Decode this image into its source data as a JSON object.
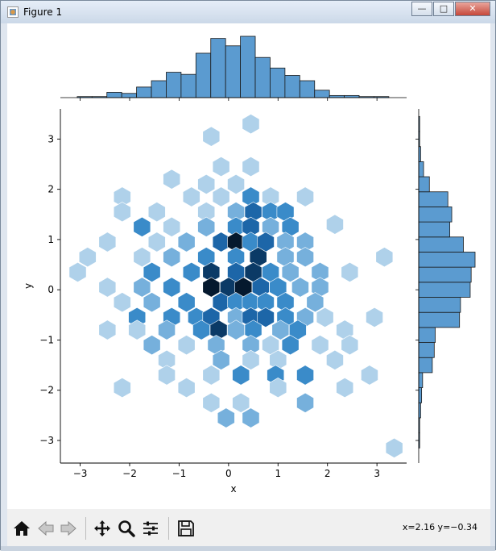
{
  "window": {
    "title": "Figure 1",
    "min": "—",
    "max": "□",
    "close": "✕"
  },
  "toolbar": {
    "buttons": [
      "home-icon",
      "back-icon",
      "forward-icon",
      "pan-icon",
      "zoom-icon",
      "configure-icon",
      "save-icon"
    ],
    "coords": "x=2.16 y=−0.34"
  },
  "colors": {
    "bar": "#5b9bd0",
    "hex_scale": [
      "#dbe9f6",
      "#afd1ea",
      "#76b0dc",
      "#3a8bc9",
      "#1d66a8",
      "#0b3a66",
      "#05192e"
    ]
  },
  "chart_data": [
    {
      "type": "heatmap",
      "subtype": "hexbin",
      "xlabel": "x",
      "ylabel": "y",
      "xlim": [
        -3.4,
        3.6
      ],
      "ylim": [
        -3.45,
        3.6
      ],
      "xticks": [
        -3,
        -2,
        -1,
        0,
        1,
        2,
        3
      ],
      "yticks": [
        -3,
        -2,
        -1,
        0,
        1,
        2,
        3
      ],
      "xtick_labels": [
        "−3",
        "−2",
        "−1",
        "0",
        "1",
        "2",
        "3"
      ],
      "ytick_labels": [
        "−3",
        "−2",
        "−1",
        "0",
        "1",
        "2",
        "3"
      ],
      "cells": [
        {
          "x": 0.45,
          "y": 3.3,
          "level": 1
        },
        {
          "x": -0.35,
          "y": 3.05,
          "level": 1
        },
        {
          "x": -0.15,
          "y": 2.45,
          "level": 1
        },
        {
          "x": 0.45,
          "y": 2.45,
          "level": 1
        },
        {
          "x": -1.15,
          "y": 2.2,
          "level": 1
        },
        {
          "x": -0.45,
          "y": 2.1,
          "level": 1
        },
        {
          "x": 0.15,
          "y": 2.1,
          "level": 1
        },
        {
          "x": -2.15,
          "y": 1.85,
          "level": 1
        },
        {
          "x": -0.75,
          "y": 1.85,
          "level": 1
        },
        {
          "x": -0.15,
          "y": 1.85,
          "level": 1
        },
        {
          "x": 0.45,
          "y": 1.85,
          "level": 3
        },
        {
          "x": 0.85,
          "y": 1.85,
          "level": 1
        },
        {
          "x": 1.55,
          "y": 1.85,
          "level": 1
        },
        {
          "x": -2.15,
          "y": 1.55,
          "level": 1
        },
        {
          "x": -1.45,
          "y": 1.55,
          "level": 1
        },
        {
          "x": -0.45,
          "y": 1.55,
          "level": 1
        },
        {
          "x": 0.15,
          "y": 1.55,
          "level": 2
        },
        {
          "x": 0.5,
          "y": 1.55,
          "level": 4
        },
        {
          "x": 0.85,
          "y": 1.55,
          "level": 3
        },
        {
          "x": 1.15,
          "y": 1.55,
          "level": 3
        },
        {
          "x": -1.75,
          "y": 1.25,
          "level": 3
        },
        {
          "x": -1.15,
          "y": 1.25,
          "level": 1
        },
        {
          "x": -0.45,
          "y": 1.25,
          "level": 2
        },
        {
          "x": 0.15,
          "y": 1.25,
          "level": 3
        },
        {
          "x": 0.45,
          "y": 1.25,
          "level": 4
        },
        {
          "x": 0.85,
          "y": 1.25,
          "level": 2
        },
        {
          "x": 1.25,
          "y": 1.25,
          "level": 3
        },
        {
          "x": 2.15,
          "y": 1.3,
          "level": 1
        },
        {
          "x": -2.45,
          "y": 0.95,
          "level": 1
        },
        {
          "x": -1.45,
          "y": 0.95,
          "level": 1
        },
        {
          "x": -0.85,
          "y": 0.95,
          "level": 2
        },
        {
          "x": -0.15,
          "y": 0.95,
          "level": 4
        },
        {
          "x": 0.15,
          "y": 0.95,
          "level": 6
        },
        {
          "x": 0.45,
          "y": 0.95,
          "level": 3
        },
        {
          "x": 0.75,
          "y": 0.95,
          "level": 4
        },
        {
          "x": 1.15,
          "y": 0.95,
          "level": 2
        },
        {
          "x": 1.55,
          "y": 0.95,
          "level": 2
        },
        {
          "x": -2.85,
          "y": 0.65,
          "level": 1
        },
        {
          "x": -1.75,
          "y": 0.65,
          "level": 1
        },
        {
          "x": -1.15,
          "y": 0.65,
          "level": 2
        },
        {
          "x": -0.45,
          "y": 0.65,
          "level": 3
        },
        {
          "x": 0.15,
          "y": 0.65,
          "level": 3
        },
        {
          "x": 0.6,
          "y": 0.65,
          "level": 5
        },
        {
          "x": 1.15,
          "y": 0.65,
          "level": 2
        },
        {
          "x": 1.55,
          "y": 0.65,
          "level": 2
        },
        {
          "x": 3.15,
          "y": 0.65,
          "level": 1
        },
        {
          "x": -3.05,
          "y": 0.35,
          "level": 1
        },
        {
          "x": -1.55,
          "y": 0.35,
          "level": 3
        },
        {
          "x": -0.75,
          "y": 0.35,
          "level": 3
        },
        {
          "x": -0.35,
          "y": 0.35,
          "level": 5
        },
        {
          "x": 0.15,
          "y": 0.35,
          "level": 4
        },
        {
          "x": 0.5,
          "y": 0.35,
          "level": 5
        },
        {
          "x": 0.85,
          "y": 0.35,
          "level": 3
        },
        {
          "x": 1.25,
          "y": 0.35,
          "level": 2
        },
        {
          "x": 1.85,
          "y": 0.35,
          "level": 2
        },
        {
          "x": 2.45,
          "y": 0.35,
          "level": 1
        },
        {
          "x": -2.45,
          "y": 0.05,
          "level": 1
        },
        {
          "x": -1.75,
          "y": 0.05,
          "level": 2
        },
        {
          "x": -1.15,
          "y": 0.05,
          "level": 3
        },
        {
          "x": -0.35,
          "y": 0.05,
          "level": 6
        },
        {
          "x": 0.0,
          "y": 0.05,
          "level": 5
        },
        {
          "x": 0.3,
          "y": 0.05,
          "level": 6
        },
        {
          "x": 0.65,
          "y": 0.05,
          "level": 4
        },
        {
          "x": 1.0,
          "y": 0.05,
          "level": 3
        },
        {
          "x": 1.45,
          "y": 0.05,
          "level": 2
        },
        {
          "x": 1.85,
          "y": 0.05,
          "level": 2
        },
        {
          "x": -2.15,
          "y": -0.25,
          "level": 1
        },
        {
          "x": -1.55,
          "y": -0.25,
          "level": 2
        },
        {
          "x": -0.85,
          "y": -0.25,
          "level": 3
        },
        {
          "x": -0.15,
          "y": -0.25,
          "level": 4
        },
        {
          "x": 0.15,
          "y": -0.25,
          "level": 3
        },
        {
          "x": 0.45,
          "y": -0.25,
          "level": 3
        },
        {
          "x": 0.75,
          "y": -0.25,
          "level": 3
        },
        {
          "x": 1.15,
          "y": -0.25,
          "level": 3
        },
        {
          "x": 1.75,
          "y": -0.25,
          "level": 2
        },
        {
          "x": -1.85,
          "y": -0.55,
          "level": 3
        },
        {
          "x": -1.15,
          "y": -0.55,
          "level": 3
        },
        {
          "x": -0.65,
          "y": -0.55,
          "level": 3
        },
        {
          "x": -0.35,
          "y": -0.55,
          "level": 4
        },
        {
          "x": 0.15,
          "y": -0.55,
          "level": 2
        },
        {
          "x": 0.45,
          "y": -0.55,
          "level": 4
        },
        {
          "x": 0.75,
          "y": -0.55,
          "level": 4
        },
        {
          "x": 1.15,
          "y": -0.55,
          "level": 3
        },
        {
          "x": 1.55,
          "y": -0.55,
          "level": 2
        },
        {
          "x": 1.95,
          "y": -0.55,
          "level": 1
        },
        {
          "x": 2.95,
          "y": -0.55,
          "level": 1
        },
        {
          "x": -2.45,
          "y": -0.8,
          "level": 1
        },
        {
          "x": -1.85,
          "y": -0.8,
          "level": 1
        },
        {
          "x": -1.25,
          "y": -0.8,
          "level": 2
        },
        {
          "x": -0.55,
          "y": -0.8,
          "level": 3
        },
        {
          "x": -0.2,
          "y": -0.8,
          "level": 5
        },
        {
          "x": 0.15,
          "y": -0.8,
          "level": 2
        },
        {
          "x": 0.5,
          "y": -0.8,
          "level": 3
        },
        {
          "x": 1.05,
          "y": -0.8,
          "level": 2
        },
        {
          "x": 1.4,
          "y": -0.8,
          "level": 3
        },
        {
          "x": 2.35,
          "y": -0.8,
          "level": 1
        },
        {
          "x": -1.55,
          "y": -1.1,
          "level": 2
        },
        {
          "x": -0.85,
          "y": -1.1,
          "level": 1
        },
        {
          "x": -0.25,
          "y": -1.1,
          "level": 2
        },
        {
          "x": 0.45,
          "y": -1.1,
          "level": 2
        },
        {
          "x": 0.85,
          "y": -1.1,
          "level": 1
        },
        {
          "x": 1.25,
          "y": -1.1,
          "level": 3
        },
        {
          "x": 1.85,
          "y": -1.1,
          "level": 1
        },
        {
          "x": 2.45,
          "y": -1.1,
          "level": 1
        },
        {
          "x": -1.25,
          "y": -1.4,
          "level": 1
        },
        {
          "x": -0.15,
          "y": -1.4,
          "level": 2
        },
        {
          "x": 0.45,
          "y": -1.4,
          "level": 1
        },
        {
          "x": 1.0,
          "y": -1.4,
          "level": 1
        },
        {
          "x": 2.15,
          "y": -1.4,
          "level": 1
        },
        {
          "x": -1.25,
          "y": -1.7,
          "level": 1
        },
        {
          "x": -0.35,
          "y": -1.7,
          "level": 1
        },
        {
          "x": 0.25,
          "y": -1.7,
          "level": 3
        },
        {
          "x": 0.95,
          "y": -1.7,
          "level": 3
        },
        {
          "x": 1.55,
          "y": -1.7,
          "level": 3
        },
        {
          "x": 2.85,
          "y": -1.7,
          "level": 1
        },
        {
          "x": -2.15,
          "y": -1.95,
          "level": 1
        },
        {
          "x": -0.85,
          "y": -1.95,
          "level": 1
        },
        {
          "x": 1.0,
          "y": -1.95,
          "level": 1
        },
        {
          "x": 2.35,
          "y": -1.95,
          "level": 1
        },
        {
          "x": -0.35,
          "y": -2.25,
          "level": 1
        },
        {
          "x": 0.25,
          "y": -2.25,
          "level": 1
        },
        {
          "x": 1.55,
          "y": -2.25,
          "level": 2
        },
        {
          "x": -0.05,
          "y": -2.55,
          "level": 2
        },
        {
          "x": 0.45,
          "y": -2.55,
          "level": 2
        },
        {
          "x": 3.35,
          "y": -3.15,
          "level": 1
        }
      ]
    },
    {
      "type": "bar",
      "subtype": "histogram",
      "orientation": "vertical",
      "variable": "x",
      "bin_edges": [
        -3.06,
        -2.76,
        -2.46,
        -2.16,
        -1.86,
        -1.56,
        -1.26,
        -0.96,
        -0.66,
        -0.36,
        -0.06,
        0.24,
        0.54,
        0.84,
        1.14,
        1.44,
        1.74,
        2.04,
        2.34,
        2.64,
        2.94,
        3.24
      ],
      "values": [
        1,
        1,
        5,
        4,
        10,
        16,
        24,
        22,
        42,
        56,
        49,
        58,
        38,
        28,
        21,
        16,
        7,
        2,
        2,
        1,
        1
      ]
    },
    {
      "type": "bar",
      "subtype": "histogram",
      "orientation": "horizontal",
      "variable": "y",
      "bin_edges": [
        -3.15,
        -2.85,
        -2.55,
        -2.25,
        -1.95,
        -1.65,
        -1.35,
        -1.05,
        -0.75,
        -0.45,
        -0.15,
        0.15,
        0.45,
        0.75,
        1.05,
        1.35,
        1.65,
        1.95,
        2.25,
        2.55,
        2.85,
        3.15,
        3.45
      ],
      "values": [
        1,
        1,
        2,
        3,
        4,
        14,
        16,
        17,
        42,
        43,
        53,
        54,
        58,
        46,
        32,
        34,
        30,
        11,
        5,
        2,
        1,
        1
      ]
    }
  ]
}
